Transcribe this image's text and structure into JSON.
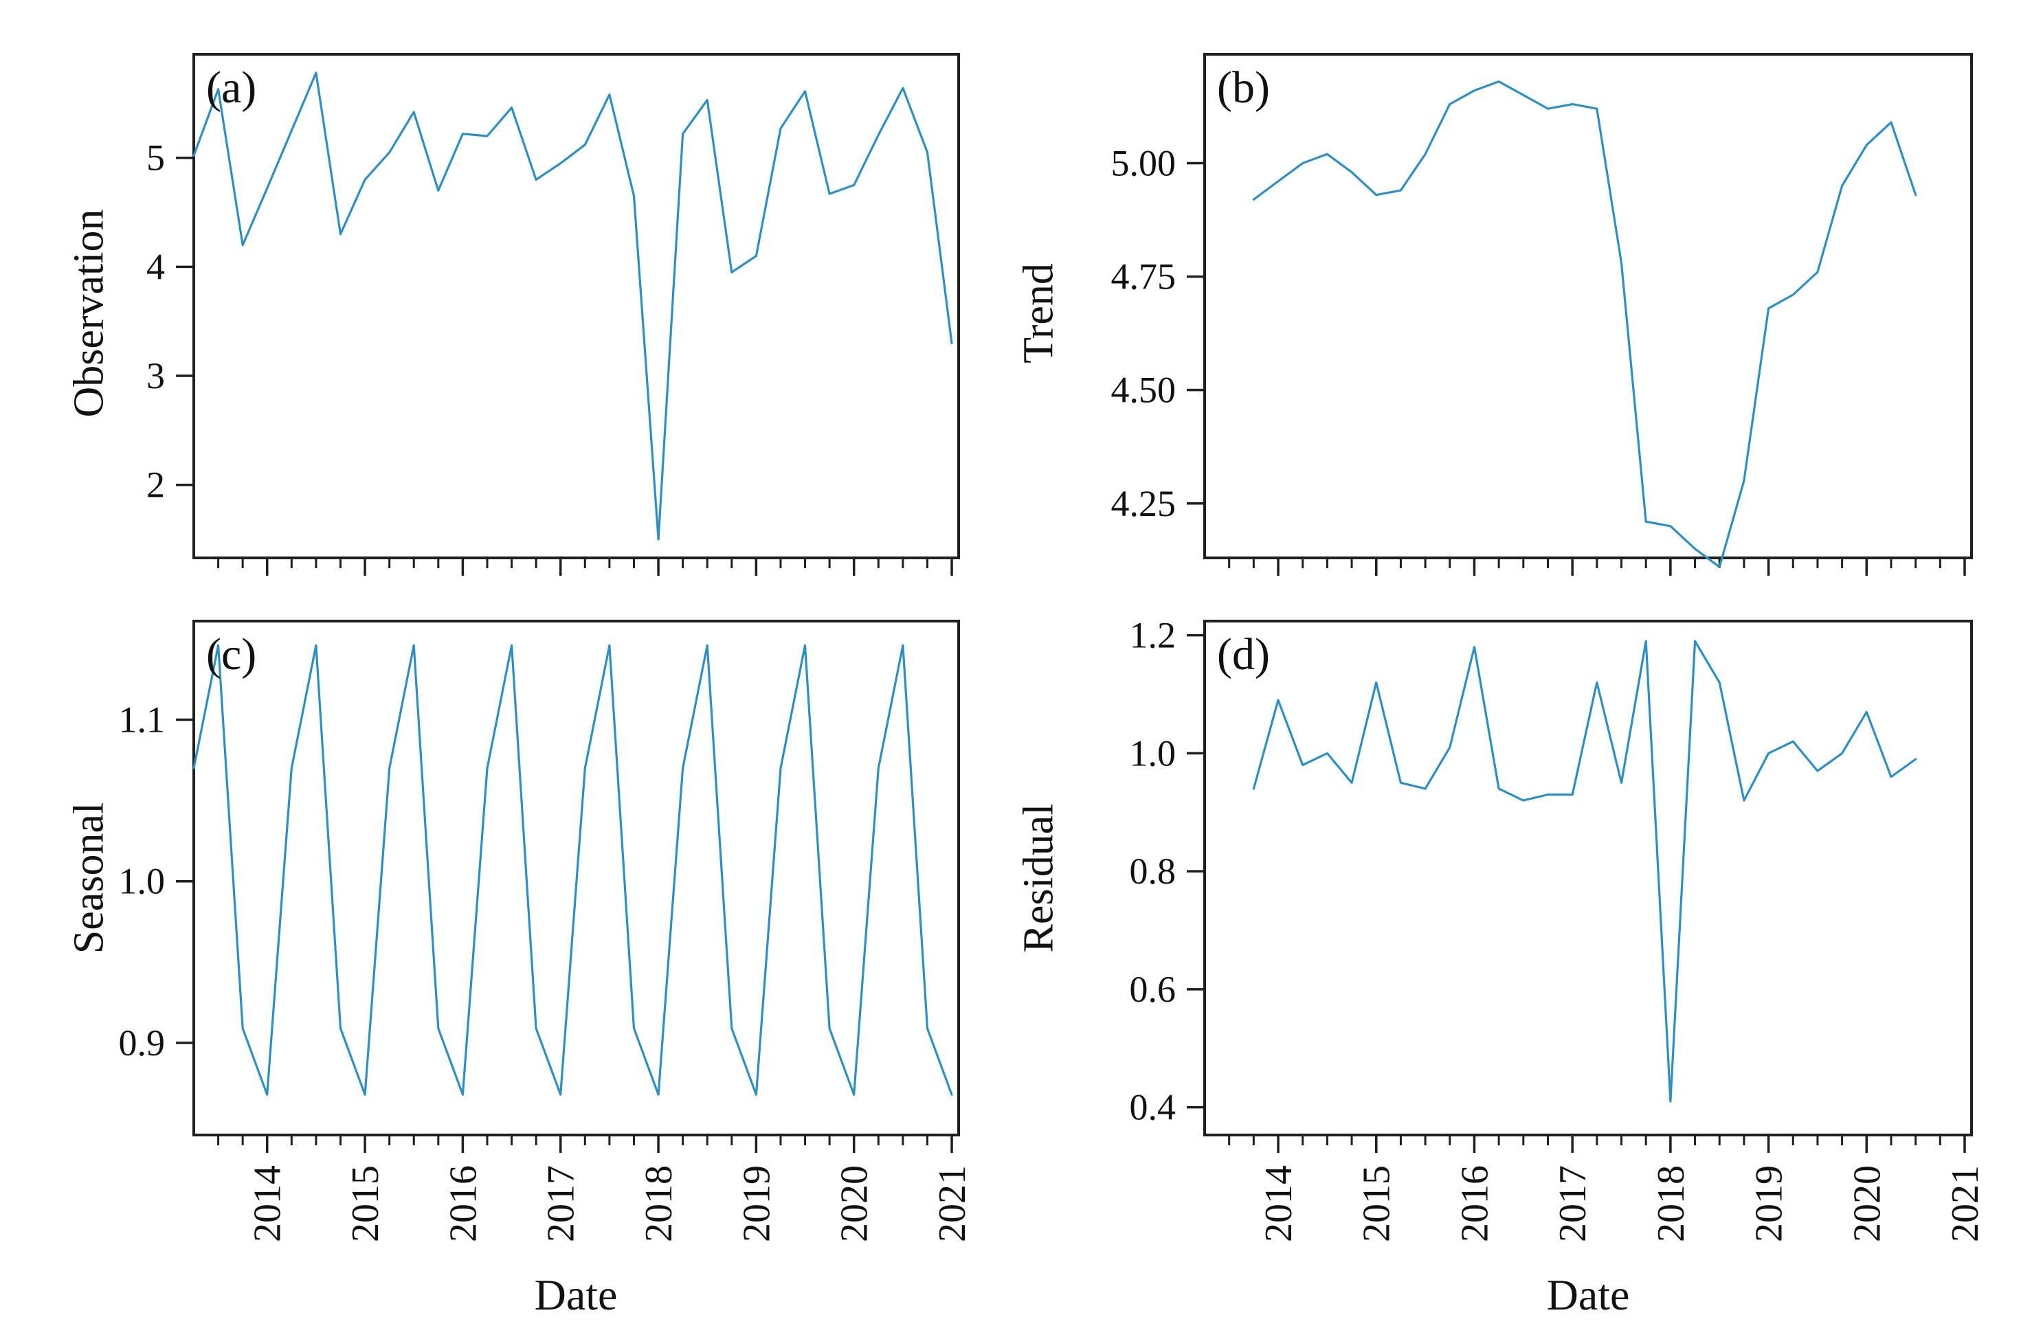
{
  "figure": {
    "background": "#ffffff",
    "line_color": "#2e8fc4",
    "axis_color": "#1f1f1f",
    "x_axis_label": "Date"
  },
  "x_axis": {
    "label": "Date",
    "xlim": [
      2013.25,
      2021.07
    ],
    "minor_step": 0.25,
    "major_ticks": [
      {
        "v": 2014,
        "label": "2014"
      },
      {
        "v": 2015,
        "label": "2015"
      },
      {
        "v": 2016,
        "label": "2016"
      },
      {
        "v": 2017,
        "label": "2017"
      },
      {
        "v": 2018,
        "label": "2018"
      },
      {
        "v": 2019,
        "label": "2019"
      },
      {
        "v": 2020,
        "label": "2020"
      },
      {
        "v": 2021,
        "label": "2021"
      }
    ]
  },
  "chart_data": [
    {
      "id": "a",
      "letter": "(a)",
      "type": "line",
      "ylabel": "Observation",
      "ylim": [
        1.33,
        5.95
      ],
      "yticks": [
        {
          "v": 2,
          "label": "2"
        },
        {
          "v": 3,
          "label": "3"
        },
        {
          "v": 4,
          "label": "4"
        },
        {
          "v": 5,
          "label": "5"
        }
      ],
      "show_x_tick_labels": false,
      "x": [
        2013.25,
        2013.5,
        2013.75,
        2014,
        2014.25,
        2014.5,
        2014.75,
        2015,
        2015.25,
        2015.5,
        2015.75,
        2016,
        2016.25,
        2016.5,
        2016.75,
        2017,
        2017.25,
        2017.5,
        2017.75,
        2018,
        2018.25,
        2018.5,
        2018.75,
        2019,
        2019.25,
        2019.5,
        2019.75,
        2020,
        2020.25,
        2020.5,
        2020.75,
        2021
      ],
      "y": [
        5.02,
        5.63,
        4.2,
        4.72,
        5.25,
        5.78,
        4.3,
        4.8,
        5.05,
        5.42,
        4.7,
        5.22,
        5.2,
        5.46,
        4.8,
        4.95,
        5.12,
        5.58,
        4.65,
        1.5,
        5.22,
        5.53,
        3.95,
        4.1,
        5.27,
        5.61,
        4.67,
        4.75,
        5.21,
        5.64,
        5.05,
        3.3
      ]
    },
    {
      "id": "b",
      "letter": "(b)",
      "type": "line",
      "ylabel": "Trend",
      "ylim": [
        4.13,
        5.24
      ],
      "yticks": [
        {
          "v": 4.25,
          "label": "4.25"
        },
        {
          "v": 4.5,
          "label": "4.50"
        },
        {
          "v": 4.75,
          "label": "4.75"
        },
        {
          "v": 5.0,
          "label": "5.00"
        }
      ],
      "show_x_tick_labels": false,
      "x": [
        2013.75,
        2014,
        2014.25,
        2014.5,
        2014.75,
        2015,
        2015.25,
        2015.5,
        2015.75,
        2016,
        2016.25,
        2016.5,
        2016.75,
        2017,
        2017.25,
        2017.5,
        2017.75,
        2018,
        2018.25,
        2018.5,
        2018.75,
        2019,
        2019.25,
        2019.5,
        2019.75,
        2020,
        2020.25,
        2020.5
      ],
      "y": [
        4.92,
        4.96,
        5.0,
        5.02,
        4.98,
        4.93,
        4.94,
        5.02,
        5.13,
        5.16,
        5.18,
        5.15,
        5.12,
        5.13,
        5.12,
        4.78,
        4.21,
        4.2,
        4.15,
        4.11,
        4.3,
        4.68,
        4.71,
        4.76,
        4.95,
        5.04,
        5.09,
        4.93
      ]
    },
    {
      "id": "c",
      "letter": "(c)",
      "type": "line",
      "ylabel": "Seasonal",
      "xlabel": "Date",
      "ylim": [
        0.843,
        1.161
      ],
      "yticks": [
        {
          "v": 0.9,
          "label": "0.9"
        },
        {
          "v": 1.0,
          "label": "1.0"
        },
        {
          "v": 1.1,
          "label": "1.1"
        }
      ],
      "show_x_tick_labels": true,
      "x": [
        2013.25,
        2013.5,
        2013.75,
        2014,
        2014.25,
        2014.5,
        2014.75,
        2015,
        2015.25,
        2015.5,
        2015.75,
        2016,
        2016.25,
        2016.5,
        2016.75,
        2017,
        2017.25,
        2017.5,
        2017.75,
        2018,
        2018.25,
        2018.5,
        2018.75,
        2019,
        2019.25,
        2019.5,
        2019.75,
        2020,
        2020.25,
        2020.5,
        2020.75,
        2021
      ],
      "y": [
        1.07,
        1.146,
        0.909,
        0.868,
        1.07,
        1.146,
        0.909,
        0.868,
        1.07,
        1.146,
        0.909,
        0.868,
        1.07,
        1.146,
        0.909,
        0.868,
        1.07,
        1.146,
        0.909,
        0.868,
        1.07,
        1.146,
        0.909,
        0.868,
        1.07,
        1.146,
        0.909,
        0.868,
        1.07,
        1.146,
        0.909,
        0.868
      ]
    },
    {
      "id": "d",
      "letter": "(d)",
      "type": "line",
      "ylabel": "Residual",
      "xlabel": "Date",
      "ylim": [
        0.353,
        1.224
      ],
      "yticks": [
        {
          "v": 0.4,
          "label": "0.4"
        },
        {
          "v": 0.6,
          "label": "0.6"
        },
        {
          "v": 0.8,
          "label": "0.8"
        },
        {
          "v": 1.0,
          "label": "1.0"
        },
        {
          "v": 1.2,
          "label": "1.2"
        }
      ],
      "show_x_tick_labels": true,
      "x": [
        2013.75,
        2014,
        2014.25,
        2014.5,
        2014.75,
        2015,
        2015.25,
        2015.5,
        2015.75,
        2016,
        2016.25,
        2016.5,
        2016.75,
        2017,
        2017.25,
        2017.5,
        2017.75,
        2018,
        2018.25,
        2018.5,
        2018.75,
        2019,
        2019.25,
        2019.5,
        2019.75,
        2020,
        2020.25,
        2020.5
      ],
      "y": [
        0.94,
        1.09,
        0.98,
        1.0,
        0.95,
        1.12,
        0.95,
        0.94,
        1.01,
        1.18,
        0.94,
        0.92,
        0.93,
        0.93,
        1.12,
        0.95,
        1.19,
        0.41,
        1.19,
        1.12,
        0.92,
        1.0,
        1.02,
        0.97,
        1.0,
        1.07,
        0.96,
        0.99
      ]
    }
  ]
}
